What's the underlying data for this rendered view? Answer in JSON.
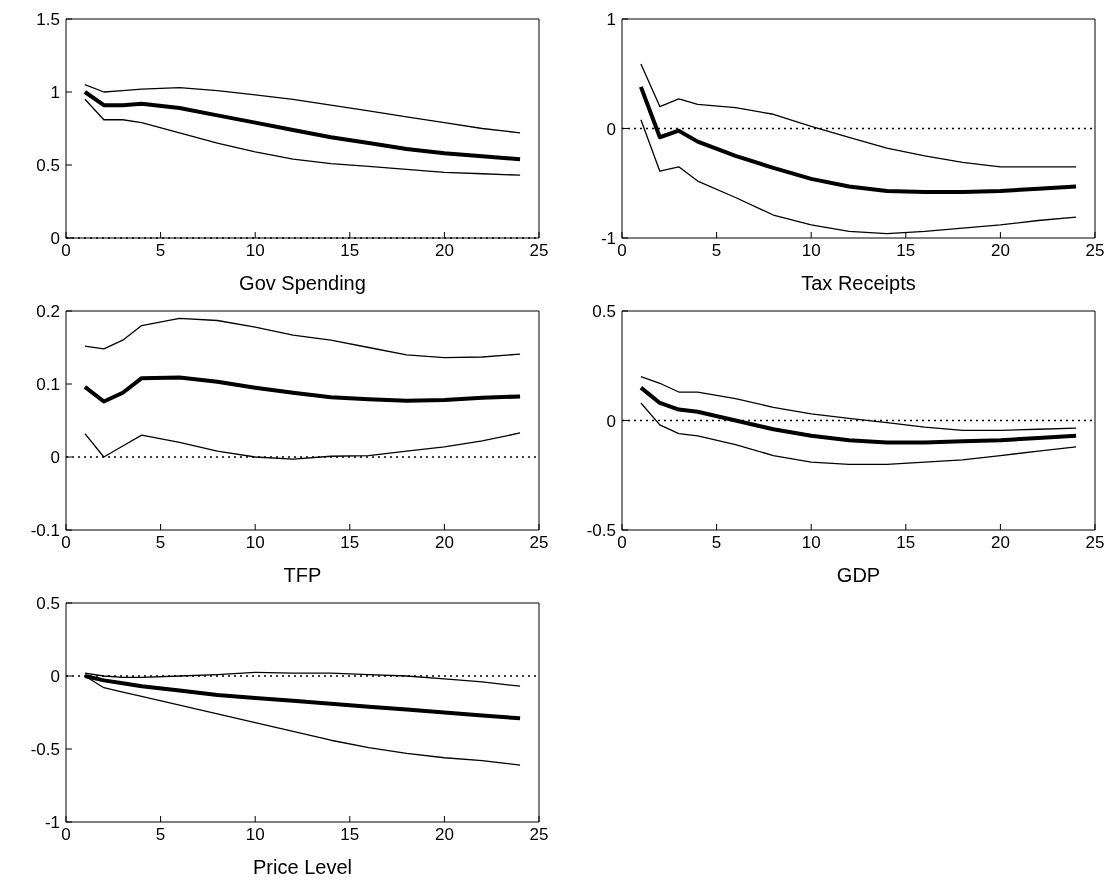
{
  "chart_data": [
    {
      "type": "line",
      "xlabel": "Gov Spending",
      "x": [
        1,
        2,
        3,
        4,
        6,
        8,
        10,
        12,
        14,
        16,
        18,
        20,
        22,
        24
      ],
      "xlim": [
        0,
        25
      ],
      "xticks": [
        0,
        5,
        10,
        15,
        20,
        25
      ],
      "ylim": [
        0,
        1.5
      ],
      "yticks": [
        0,
        0.5,
        1,
        1.5
      ],
      "grid": false,
      "legend": false,
      "line_style": "solid",
      "marker": "none",
      "series": [
        {
          "color": "#000000",
          "values": [
            1.05,
            1.0,
            1.01,
            1.02,
            1.03,
            1.01,
            0.98,
            0.95,
            0.91,
            0.87,
            0.83,
            0.79,
            0.75,
            0.72
          ]
        },
        {
          "color": "#000000",
          "values": [
            1.0,
            0.91,
            0.91,
            0.92,
            0.89,
            0.84,
            0.79,
            0.74,
            0.69,
            0.65,
            0.61,
            0.58,
            0.56,
            0.54
          ]
        },
        {
          "color": "#000000",
          "values": [
            0.95,
            0.81,
            0.81,
            0.79,
            0.72,
            0.65,
            0.59,
            0.54,
            0.51,
            0.49,
            0.47,
            0.45,
            0.44,
            0.43
          ]
        }
      ],
      "ref_lines": [
        {
          "axis": "y",
          "value": 0,
          "color": "#000000",
          "line_style": "dotted"
        }
      ]
    },
    {
      "type": "line",
      "xlabel": "Tax Receipts",
      "x": [
        1,
        2,
        3,
        4,
        6,
        8,
        10,
        12,
        14,
        16,
        18,
        20,
        22,
        24
      ],
      "xlim": [
        0,
        25
      ],
      "xticks": [
        0,
        5,
        10,
        15,
        20,
        25
      ],
      "ylim": [
        -1,
        1
      ],
      "yticks": [
        -1,
        0,
        1
      ],
      "grid": false,
      "legend": false,
      "line_style": "solid",
      "marker": "none",
      "series": [
        {
          "color": "#000000",
          "values": [
            0.59,
            0.2,
            0.27,
            0.22,
            0.19,
            0.13,
            0.02,
            -0.08,
            -0.18,
            -0.25,
            -0.31,
            -0.35,
            -0.35,
            -0.35
          ]
        },
        {
          "color": "#000000",
          "values": [
            0.38,
            -0.08,
            -0.02,
            -0.12,
            -0.25,
            -0.36,
            -0.46,
            -0.53,
            -0.57,
            -0.58,
            -0.58,
            -0.57,
            -0.55,
            -0.53
          ]
        },
        {
          "color": "#000000",
          "values": [
            0.08,
            -0.39,
            -0.35,
            -0.48,
            -0.63,
            -0.79,
            -0.88,
            -0.94,
            -0.96,
            -0.94,
            -0.91,
            -0.88,
            -0.84,
            -0.81
          ]
        }
      ],
      "ref_lines": [
        {
          "axis": "y",
          "value": 0,
          "color": "#000000",
          "line_style": "dotted"
        }
      ]
    },
    {
      "type": "line",
      "xlabel": "TFP",
      "x": [
        1,
        2,
        3,
        4,
        6,
        8,
        10,
        12,
        14,
        16,
        18,
        20,
        22,
        24
      ],
      "xlim": [
        0,
        25
      ],
      "xticks": [
        0,
        5,
        10,
        15,
        20,
        25
      ],
      "ylim": [
        -0.1,
        0.2
      ],
      "yticks": [
        -0.1,
        0,
        0.1,
        0.2
      ],
      "grid": false,
      "legend": false,
      "line_style": "solid",
      "marker": "none",
      "series": [
        {
          "color": "#000000",
          "values": [
            0.152,
            0.148,
            0.16,
            0.18,
            0.19,
            0.187,
            0.178,
            0.167,
            0.16,
            0.15,
            0.14,
            0.136,
            0.137,
            0.141
          ]
        },
        {
          "color": "#000000",
          "values": [
            0.096,
            0.076,
            0.088,
            0.108,
            0.109,
            0.103,
            0.095,
            0.088,
            0.082,
            0.079,
            0.077,
            0.078,
            0.081,
            0.083
          ]
        },
        {
          "color": "#000000",
          "values": [
            0.032,
            0,
            0.015,
            0.03,
            0.02,
            0.008,
            0,
            -0.003,
            0.001,
            0.002,
            0.008,
            0.014,
            0.022,
            0.033
          ]
        }
      ],
      "ref_lines": [
        {
          "axis": "y",
          "value": 0,
          "color": "#000000",
          "line_style": "dotted"
        }
      ]
    },
    {
      "type": "line",
      "xlabel": "GDP",
      "x": [
        1,
        2,
        3,
        4,
        6,
        8,
        10,
        12,
        14,
        16,
        18,
        20,
        22,
        24
      ],
      "xlim": [
        0,
        25
      ],
      "xticks": [
        0,
        5,
        10,
        15,
        20,
        25
      ],
      "ylim": [
        -0.5,
        0.5
      ],
      "yticks": [
        -0.5,
        0,
        0.5
      ],
      "grid": false,
      "legend": false,
      "line_style": "solid",
      "marker": "none",
      "series": [
        {
          "color": "#000000",
          "values": [
            0.2,
            0.17,
            0.13,
            0.13,
            0.1,
            0.06,
            0.03,
            0.01,
            -0.01,
            -0.03,
            -0.045,
            -0.045,
            -0.04,
            -0.035
          ]
        },
        {
          "color": "#000000",
          "values": [
            0.15,
            0.08,
            0.05,
            0.04,
            0.0,
            -0.04,
            -0.07,
            -0.09,
            -0.1,
            -0.1,
            -0.095,
            -0.09,
            -0.08,
            -0.07
          ]
        },
        {
          "color": "#000000",
          "values": [
            0.08,
            -0.02,
            -0.06,
            -0.07,
            -0.11,
            -0.16,
            -0.19,
            -0.2,
            -0.2,
            -0.19,
            -0.18,
            -0.16,
            -0.14,
            -0.12
          ]
        }
      ],
      "ref_lines": [
        {
          "axis": "y",
          "value": 0,
          "color": "#000000",
          "line_style": "dotted"
        }
      ]
    },
    {
      "type": "line",
      "xlabel": "Price Level",
      "x": [
        1,
        2,
        3,
        4,
        6,
        8,
        10,
        12,
        14,
        16,
        18,
        20,
        22,
        24
      ],
      "xlim": [
        0,
        25
      ],
      "xticks": [
        0,
        5,
        10,
        15,
        20,
        25
      ],
      "ylim": [
        -1,
        0.5
      ],
      "yticks": [
        -1,
        -0.5,
        0,
        0.5
      ],
      "grid": false,
      "legend": false,
      "line_style": "solid",
      "marker": "none",
      "series": [
        {
          "color": "#000000",
          "values": [
            0.02,
            0,
            -0.01,
            -0.01,
            0,
            0.01,
            0.025,
            0.02,
            0.02,
            0.01,
            0,
            -0.02,
            -0.04,
            -0.07
          ]
        },
        {
          "color": "#000000",
          "values": [
            0.0,
            -0.03,
            -0.05,
            -0.07,
            -0.1,
            -0.13,
            -0.15,
            -0.17,
            -0.19,
            -0.21,
            -0.23,
            -0.25,
            -0.27,
            -0.29
          ]
        },
        {
          "color": "#000000",
          "values": [
            0.0,
            -0.08,
            -0.11,
            -0.14,
            -0.2,
            -0.26,
            -0.32,
            -0.38,
            -0.44,
            -0.49,
            -0.53,
            -0.56,
            -0.58,
            -0.61
          ]
        }
      ],
      "ref_lines": [
        {
          "axis": "y",
          "value": 0,
          "color": "#000000",
          "line_style": "dotted"
        }
      ]
    }
  ]
}
